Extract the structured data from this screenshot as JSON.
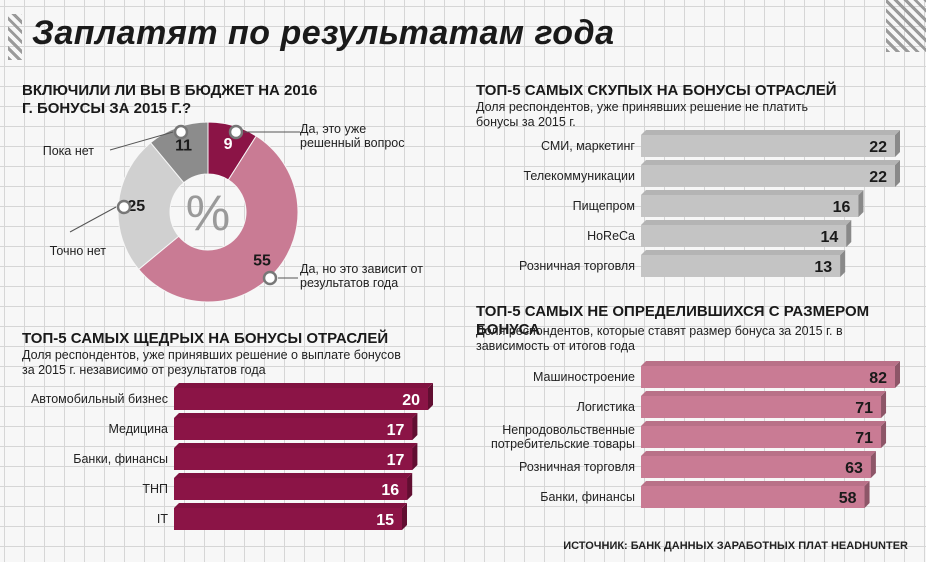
{
  "title": "Заплатят по результатам года",
  "source": "ИСТОЧНИК: БАНК ДАННЫХ ЗАРАБОТНЫХ ПЛАТ HEADHUNTER",
  "colors": {
    "crimson": "#8b1446",
    "pink": "#c97b94",
    "gray": "#c4c4c4",
    "dark_gray": "#8c8c8c",
    "wine_dark": "#5c0c2e"
  },
  "chart_data": [
    {
      "type": "pie",
      "title": "ВКЛЮЧИЛИ ЛИ ВЫ В БЮДЖЕТ НА 2016 Г. БОНУСЫ ЗА 2015 Г.?",
      "center_label": "%",
      "categories": [
        "Да, это уже решенный вопрос",
        "Да, но это зависит от результатов года",
        "Точно нет",
        "Пока нет"
      ],
      "values": [
        9,
        55,
        25,
        11
      ],
      "colors": [
        "#8b1446",
        "#c97b94",
        "#d0d0d0",
        "#8c8c8c"
      ]
    },
    {
      "type": "bar",
      "title": "ТОП-5 САМЫХ ЩЕДРЫХ НА БОНУСЫ ОТРАСЛЕЙ",
      "subtitle": "Доля респондентов, уже принявших решение о выплате бонусов за 2015 г. независимо от результатов года",
      "categories": [
        "Автомобильный бизнес",
        "Медицина",
        "Банки, финансы",
        "ТНП",
        "IT"
      ],
      "values": [
        20,
        17,
        17,
        16,
        15
      ],
      "color": "#8b1446"
    },
    {
      "type": "bar",
      "title": "ТОП-5 САМЫХ СКУПЫХ НА БОНУСЫ ОТРАСЛЕЙ",
      "subtitle": "Доля респондентов, уже принявших решение не платить бонусы за 2015 г.",
      "categories": [
        "СМИ, маркетинг",
        "Телекоммуникации",
        "Пищепром",
        "HoReCa",
        "Розничная торговля"
      ],
      "values": [
        22,
        22,
        16,
        14,
        13
      ],
      "color": "#c4c4c4"
    },
    {
      "type": "bar",
      "title": "ТОП-5 САМЫХ НЕ ОПРЕДЕЛИВШИХСЯ С РАЗМЕРОМ БОНУСА",
      "subtitle": "Доля респондентов, которые ставят размер бонуса за 2015 г. в зависимость от итогов года",
      "categories": [
        "Машиностроение",
        "Логистика",
        "Непродовольственные потребительские товары",
        "Розничная торговля",
        "Банки, финансы"
      ],
      "values": [
        82,
        71,
        71,
        63,
        58
      ],
      "color": "#c97b94"
    }
  ]
}
